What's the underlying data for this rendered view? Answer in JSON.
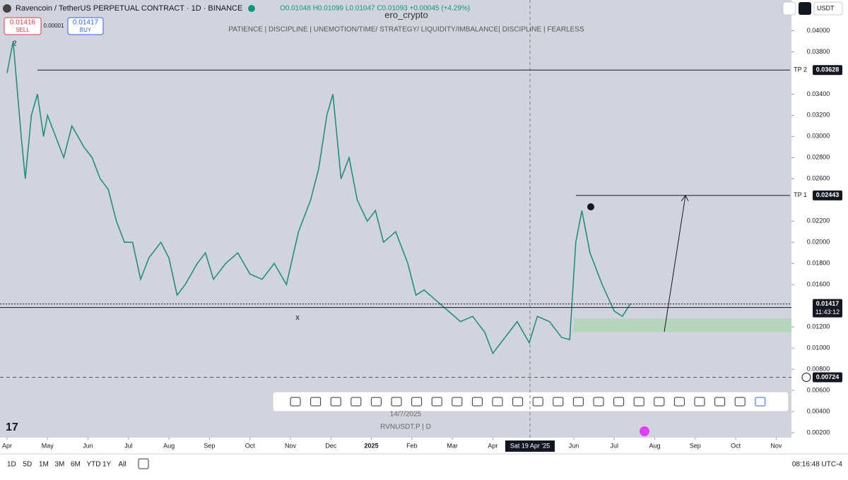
{
  "header": {
    "symbol": "Ravencoin / TetherUS PERPETUAL CONTRACT · 1D · BINANCE",
    "ohlc": "O0.01048 H0.01099 L0.01047 C0.01093 +0.00045 (+4.29%)",
    "watermark": "ero_crypto",
    "sell_price": "0.01416",
    "sell": "SELL",
    "spread": "0.00001",
    "buy_price": "0.01417",
    "buy": "BUY",
    "indicator_count": "2",
    "motto": "PATIENCE  |  DISCIPLINE  |  UNEMOTION/TIME/ STRATEGY/ LIQUIDITY/IMBALANCE|  DISCIPLINE  |  FEARLESS",
    "currency": "USDT"
  },
  "chart_data": {
    "type": "line",
    "series": [
      {
        "name": "RVNUSDT.P",
        "color": "#1f8f80",
        "x": [
          0.0,
          0.15,
          0.35,
          0.45,
          0.6,
          0.75,
          0.9,
          1.0,
          1.2,
          1.4,
          1.6,
          1.9,
          2.1,
          2.3,
          2.5,
          2.7,
          2.9,
          3.1,
          3.3,
          3.5,
          3.8,
          4.0,
          4.2,
          4.4,
          4.7,
          4.9,
          5.1,
          5.4,
          5.7,
          6.0,
          6.3,
          6.6,
          6.9,
          7.2,
          7.5,
          7.7,
          7.9,
          8.05,
          8.25,
          8.45,
          8.65,
          8.9,
          9.1,
          9.3,
          9.6,
          9.9,
          10.1,
          10.3,
          10.6,
          10.9,
          11.2,
          11.5,
          11.8,
          12.0,
          12.3,
          12.6,
          12.9,
          13.1,
          13.4,
          13.7,
          13.9,
          14.05,
          14.2,
          14.4,
          14.7,
          15.0,
          15.2,
          15.4
        ],
        "values": [
          0.036,
          0.039,
          0.03,
          0.026,
          0.032,
          0.034,
          0.03,
          0.032,
          0.03,
          0.028,
          0.031,
          0.029,
          0.028,
          0.026,
          0.025,
          0.022,
          0.02,
          0.02,
          0.0165,
          0.0185,
          0.02,
          0.0185,
          0.015,
          0.016,
          0.018,
          0.019,
          0.0165,
          0.018,
          0.019,
          0.017,
          0.0165,
          0.018,
          0.016,
          0.021,
          0.024,
          0.027,
          0.032,
          0.034,
          0.026,
          0.028,
          0.024,
          0.022,
          0.023,
          0.02,
          0.021,
          0.018,
          0.015,
          0.0155,
          0.0145,
          0.0135,
          0.0125,
          0.013,
          0.0115,
          0.0095,
          0.011,
          0.0125,
          0.0105,
          0.013,
          0.0125,
          0.011,
          0.0108,
          0.02,
          0.023,
          0.019,
          0.016,
          0.0135,
          0.013,
          0.0142
        ]
      }
    ],
    "xlim": [
      -0.1,
      19.1
    ],
    "xticks": [
      {
        "value": 0,
        "label": "Apr"
      },
      {
        "value": 1,
        "label": "May"
      },
      {
        "value": 2,
        "label": "Jun"
      },
      {
        "value": 3,
        "label": "Jul"
      },
      {
        "value": 4,
        "label": "Aug"
      },
      {
        "value": 5,
        "label": "Sep"
      },
      {
        "value": 6,
        "label": "Oct"
      },
      {
        "value": 7,
        "label": "Nov"
      },
      {
        "value": 8,
        "label": "Dec"
      },
      {
        "value": 9,
        "label": "2025"
      },
      {
        "value": 10,
        "label": "Feb"
      },
      {
        "value": 11,
        "label": "Mar"
      },
      {
        "value": 12,
        "label": "Apr"
      },
      {
        "value": 14,
        "label": "Jun"
      },
      {
        "value": 15,
        "label": "Jul"
      },
      {
        "value": 16,
        "label": "Aug"
      },
      {
        "value": 17,
        "label": "Sep"
      },
      {
        "value": 18,
        "label": "Oct"
      },
      {
        "value": 19,
        "label": "Nov"
      }
    ],
    "ylim": [
      0.0,
      0.0429
    ],
    "yticks": [
      {
        "value": 0.04,
        "label": "0.04000"
      },
      {
        "value": 0.038,
        "label": "0.03800"
      },
      {
        "value": 0.034,
        "label": "0.03400"
      },
      {
        "value": 0.032,
        "label": "0.03200"
      },
      {
        "value": 0.03,
        "label": "0.03000"
      },
      {
        "value": 0.028,
        "label": "0.02800"
      },
      {
        "value": 0.026,
        "label": "0.02600"
      },
      {
        "value": 0.022,
        "label": "0.02200"
      },
      {
        "value": 0.02,
        "label": "0.02000"
      },
      {
        "value": 0.018,
        "label": "0.01800"
      },
      {
        "value": 0.016,
        "label": "0.01600"
      },
      {
        "value": 0.012,
        "label": "0.01200"
      },
      {
        "value": 0.01,
        "label": "0.01000"
      },
      {
        "value": 0.008,
        "label": "0.00800"
      },
      {
        "value": 0.006,
        "label": "0.00600"
      },
      {
        "value": 0.004,
        "label": "0.00400"
      },
      {
        "value": 0.002,
        "label": "0.00200"
      }
    ],
    "levels": [
      {
        "label": "TP 2",
        "value": 0.03628,
        "value_label": "0.03628",
        "x_start": 0.75
      },
      {
        "label": "TP 1",
        "value": 0.02443,
        "value_label": "0.02443",
        "x_start": 14.05
      }
    ],
    "last_price": {
      "value": 0.01417,
      "value_label": "0.01417",
      "countdown": "11:43:12"
    },
    "alert_level": {
      "value": 0.00724,
      "value_label": "0.00724"
    },
    "zone": {
      "low": 0.0115,
      "high": 0.0128,
      "x_start": 14.0
    },
    "marker": "x",
    "crosshair_label": "Sat 19 Apr '25",
    "date_label": "14/7/2025",
    "symbol_label": "RVNUSDT.P  |  D"
  },
  "footer": {
    "ranges": [
      "1D",
      "5D",
      "1M",
      "3M",
      "6M",
      "YTD",
      "1Y",
      "All"
    ],
    "clock": "08:16:48 UTC-4"
  }
}
